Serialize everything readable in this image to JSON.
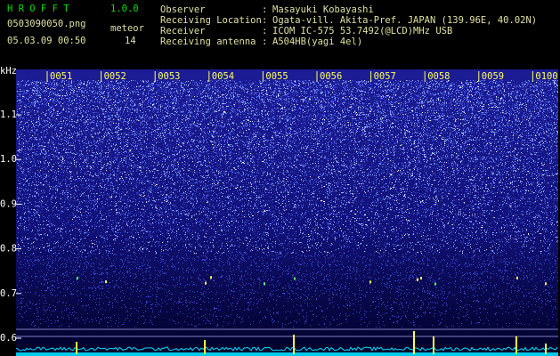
{
  "header": {
    "app": "H R O F F T",
    "version": "1.0.0",
    "file": "0503090050.png",
    "meteor_label": "meteor",
    "datetime": "05.03.09 00:50",
    "meteor_count": 14
  },
  "info": {
    "separator": ":",
    "rows": [
      {
        "label": "Observer",
        "value": "Masayuki Kobayashi"
      },
      {
        "label": "Receiving Location",
        "value": "Ogata-vill. Akita-Pref. JAPAN (139.96E, 40.02N)"
      },
      {
        "label": "Receiver",
        "value": "ICOM IC-575 53.7492(@LCD)MHz USB"
      },
      {
        "label": "Receiving antenna",
        "value": "A504HB(yagi 4el)"
      }
    ]
  },
  "axis": {
    "unit": "kHz",
    "frequencies": [
      "1.1",
      "1.0",
      "0.9",
      "0.8",
      "0.7",
      "0.6"
    ],
    "times": [
      "0051",
      "0052",
      "0053",
      "0054",
      "0055",
      "0056",
      "0057",
      "0058",
      "0059",
      "0100"
    ]
  }
}
